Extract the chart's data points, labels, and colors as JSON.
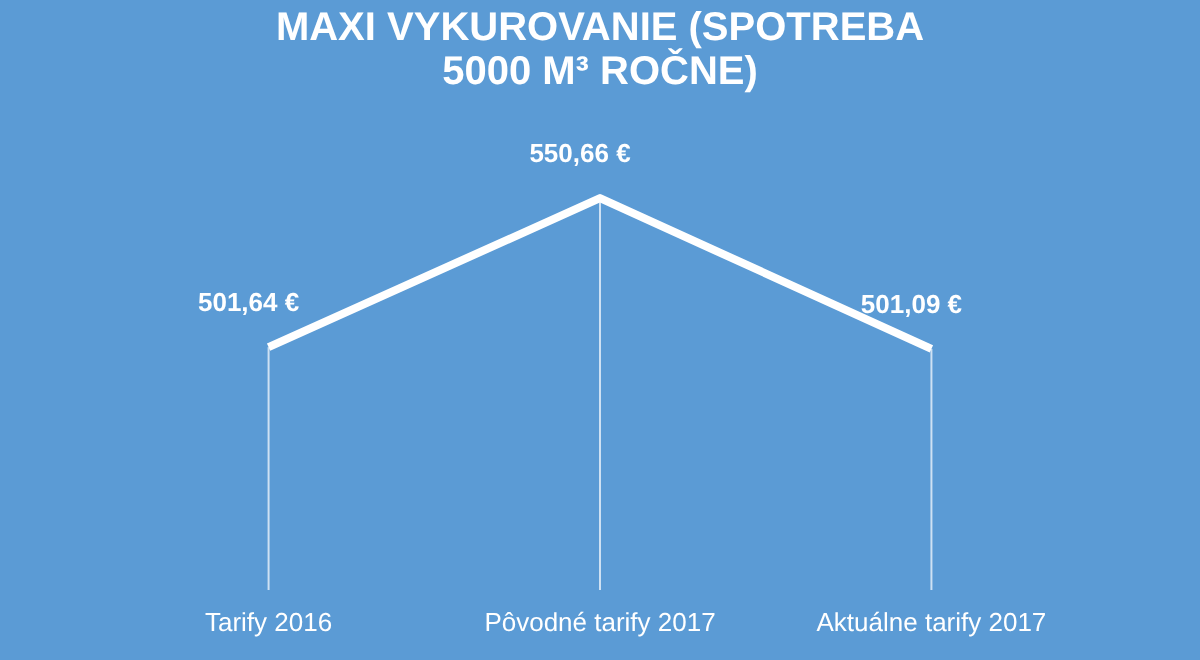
{
  "chart_data": {
    "type": "line",
    "title": "MAXI VYKUROVANIE (SPOTREBA 5000 M³ ROČNE)",
    "categories": [
      "Tarify 2016",
      "Pôvodné tarify 2017",
      "Aktuálne tarify 2017"
    ],
    "series": [
      {
        "color": "#ffffff",
        "values": [
          501.64,
          550.66,
          501.09
        ],
        "value_labels": [
          "501,64 €",
          "550,66 €",
          "501,09 €"
        ]
      }
    ],
    "marker": "none",
    "grid": "x",
    "line_style": "solid"
  }
}
